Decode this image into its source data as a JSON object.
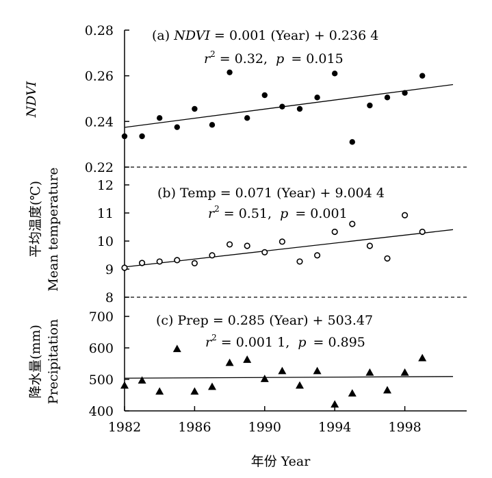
{
  "chart_data": [
    {
      "type": "scatter",
      "panel": "(a)",
      "ylabel": "NDVI",
      "equation": "(a) NDVI = 0.001 (Year) + 0.236 4",
      "eq_prefix": "(a)",
      "eq_var": "NDVI",
      "eq_rest": "= 0.001 (Year) + 0.236 4",
      "stats_r": "r",
      "stats_sup": "2",
      "stats_mid": "= 0.32,",
      "stats_p": "p",
      "stats_end": "= 0.015",
      "marker": "filled-circle",
      "ylim": [
        0.22,
        0.28
      ],
      "yticks": [
        "0.22",
        "0.24",
        "0.26",
        "0.28"
      ],
      "ytick_values": [
        0.22,
        0.24,
        0.26,
        0.28
      ],
      "x": [
        1982,
        1983,
        1984,
        1985,
        1986,
        1987,
        1988,
        1989,
        1990,
        1991,
        1992,
        1993,
        1994,
        1995,
        1996,
        1997,
        1998,
        1999
      ],
      "values": [
        0.2335,
        0.2335,
        0.2415,
        0.2375,
        0.2455,
        0.2385,
        0.2615,
        0.2415,
        0.2515,
        0.2465,
        0.2455,
        0.2505,
        0.261,
        0.231,
        0.247,
        0.2505,
        0.2525,
        0.26
      ],
      "trend": {
        "slope": 0.001,
        "intercept": 0.2364,
        "x0": 1982
      }
    },
    {
      "type": "scatter",
      "panel": "(b)",
      "ylabel_cn": "平均温度(℃)",
      "ylabel": "Mean temperature",
      "equation": "(b) Temp = 0.071 (Year) + 9.004 4",
      "eq_text": "(b) Temp = 0.071 (Year) + 9.004 4",
      "stats_r": "r",
      "stats_sup": "2",
      "stats_mid": "= 0.51,",
      "stats_p": "p",
      "stats_end": "= 0.001",
      "marker": "open-circle",
      "ylim": [
        8,
        12
      ],
      "yticks": [
        "8",
        "9",
        "10",
        "11",
        "12"
      ],
      "ytick_values": [
        8,
        9,
        10,
        11,
        12
      ],
      "x": [
        1982,
        1983,
        1984,
        1985,
        1986,
        1987,
        1988,
        1989,
        1990,
        1991,
        1992,
        1993,
        1994,
        1995,
        1996,
        1997,
        1998,
        1999
      ],
      "values": [
        9.05,
        9.22,
        9.27,
        9.32,
        9.21,
        9.49,
        9.88,
        9.83,
        9.6,
        9.98,
        9.27,
        9.49,
        10.33,
        10.61,
        9.83,
        9.38,
        10.92,
        10.33
      ],
      "trend": {
        "slope": 0.071,
        "intercept": 9.0044,
        "x0": 1982
      }
    },
    {
      "type": "scatter",
      "panel": "(c)",
      "ylabel_cn": "降水量(mm)",
      "ylabel": "Precipitation",
      "equation": "(c) Prep = 0.285 (Year) + 503.47",
      "eq_text": "(c) Prep = 0.285 (Year) + 503.47",
      "stats_r": "r",
      "stats_sup": "2",
      "stats_mid": "= 0.001 1,",
      "stats_p": "p",
      "stats_end": "= 0.895",
      "marker": "filled-triangle",
      "ylim": [
        400,
        700
      ],
      "yticks": [
        "400",
        "500",
        "600",
        "700"
      ],
      "ytick_values": [
        400,
        500,
        600,
        700
      ],
      "x": [
        1982,
        1983,
        1984,
        1985,
        1986,
        1987,
        1988,
        1989,
        1990,
        1991,
        1992,
        1993,
        1994,
        1995,
        1996,
        1997,
        1998,
        1999
      ],
      "values": [
        481,
        497,
        462,
        597,
        462,
        477,
        553,
        563,
        502,
        527,
        481,
        527,
        421,
        456,
        522,
        466,
        522,
        568
      ],
      "trend": {
        "slope": 0.285,
        "intercept": 503.47,
        "x0": 1982
      }
    }
  ],
  "xaxis": {
    "label": "年份 Year",
    "ticks": [
      "1982",
      "1986",
      "1990",
      "1994",
      "1998"
    ],
    "tick_values": [
      1982,
      1986,
      1990,
      1994,
      1998
    ],
    "xlim": [
      1982,
      2000
    ]
  }
}
